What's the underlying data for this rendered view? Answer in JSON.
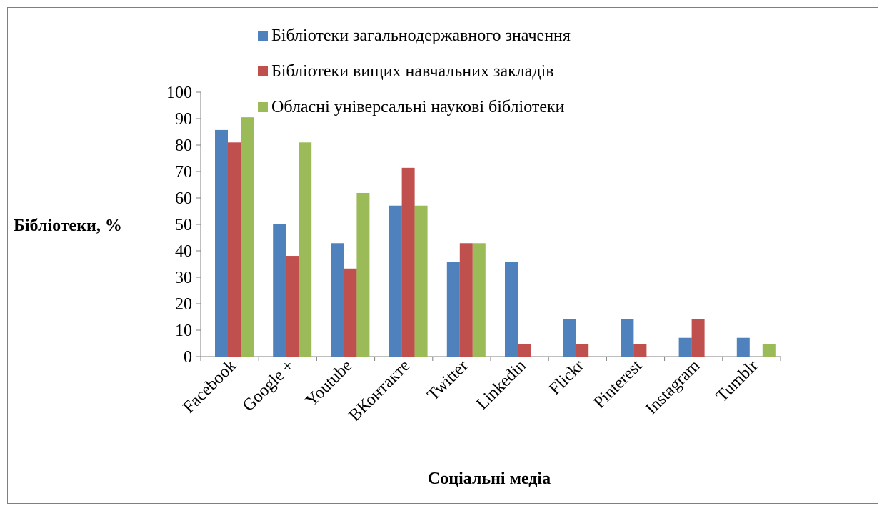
{
  "chart_data": {
    "type": "bar",
    "title": "",
    "xlabel": "Соціальні медіа",
    "ylabel": "Бібліотеки, %",
    "ylim": [
      0,
      100
    ],
    "yticks": [
      0,
      10,
      20,
      30,
      40,
      50,
      60,
      70,
      80,
      90,
      100
    ],
    "grid": false,
    "legend_position": "top",
    "categories": [
      "Facebook",
      "Google +",
      "Youtube",
      "ВКонтакте",
      "Twitter",
      "Linkedin",
      "Flickr",
      "Pinterest",
      "Instagram",
      "Tumblr"
    ],
    "series": [
      {
        "name": "Бібліотеки загальнодержавного значення",
        "color": "#4f81bd",
        "values": [
          85.7,
          50,
          42.9,
          57.1,
          35.7,
          35.7,
          14.3,
          14.3,
          7.1,
          7.1
        ]
      },
      {
        "name": "Бібліотеки вищих навчальних закладів",
        "color": "#c0504d",
        "values": [
          81,
          38.1,
          33.3,
          71.4,
          42.9,
          4.8,
          4.8,
          4.8,
          14.3,
          0
        ]
      },
      {
        "name": "Обласні універсальні наукові бібліотеки",
        "color": "#9bbb59",
        "values": [
          90.5,
          81,
          61.9,
          57.1,
          42.9,
          0,
          0,
          0,
          0,
          4.8
        ]
      }
    ]
  }
}
